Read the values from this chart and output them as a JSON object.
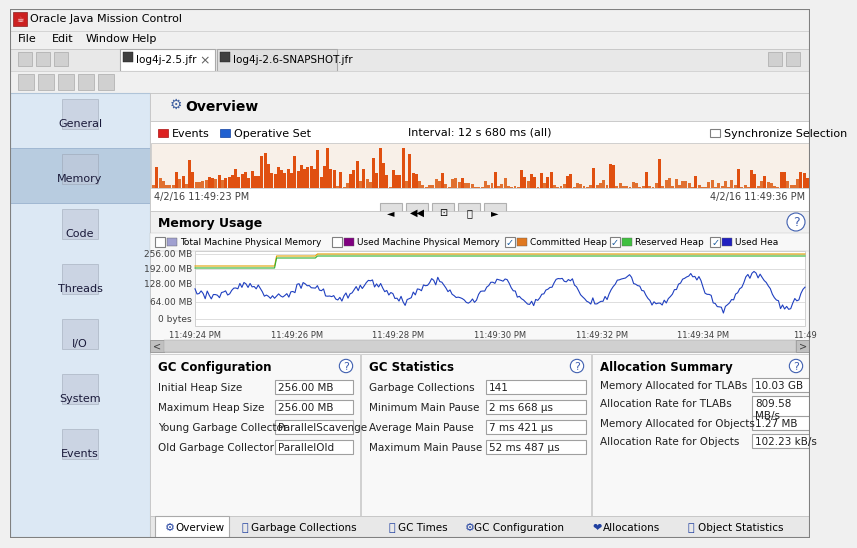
{
  "title_bar": "Oracle Java Mission Control",
  "menu_items": [
    "File",
    "Edit",
    "Window",
    "Help"
  ],
  "tabs": [
    "log4j-2.5.jfr",
    "log4j-2.6-SNAPSHOT.jfr"
  ],
  "active_tab": 0,
  "nav_items": [
    "General",
    "Memory",
    "Code",
    "Threads",
    "I/O",
    "System",
    "Events"
  ],
  "active_nav": "Memory",
  "section_title": "Overview",
  "events_label": "Events",
  "operative_set_label": "Operative Set",
  "interval_label": "Interval: 12 s 680 ms (all)",
  "sync_label": "Synchronize Selection",
  "time_start": "4/2/16 11:49:23 PM",
  "time_end": "4/2/16 11:49:36 PM",
  "memory_usage_title": "Memory Usage",
  "memory_legend": [
    {
      "label": "Total Machine Physical Memory",
      "color": "#a0a0d0",
      "checked": false
    },
    {
      "label": "Used Machine Physical Memory",
      "color": "#800080",
      "checked": false
    },
    {
      "label": "Committed Heap",
      "color": "#e07820",
      "checked": true
    },
    {
      "label": "Reserved Heap",
      "color": "#40c040",
      "checked": true
    },
    {
      "label": "Used Hea",
      "color": "#2020c0",
      "checked": true
    }
  ],
  "mem_y_labels": [
    "256.00 MB",
    "192.00 MB",
    "128.00 MB",
    "64.00 MB",
    "0 bytes"
  ],
  "mem_x_labels": [
    "11:49:24 PM",
    "11:49:26 PM",
    "11:49:28 PM",
    "11:49:30 PM",
    "11:49:32 PM",
    "11:49:34 PM",
    "11:49"
  ],
  "gc_config_title": "GC Configuration",
  "gc_config_items": [
    {
      "label": "Initial Heap Size",
      "value": "256.00 MB"
    },
    {
      "label": "Maximum Heap Size",
      "value": "256.00 MB"
    },
    {
      "label": "Young Garbage Collector",
      "value": "ParallelScavenge"
    },
    {
      "label": "Old Garbage Collector",
      "value": "ParallelOld"
    }
  ],
  "gc_stats_title": "GC Statistics",
  "gc_stats_items": [
    {
      "label": "Garbage Collections",
      "value": "141"
    },
    {
      "label": "Minimum Main Pause",
      "value": "2 ms 668 μs"
    },
    {
      "label": "Average Main Pause",
      "value": "7 ms 421 μs"
    },
    {
      "label": "Maximum Main Pause",
      "value": "52 ms 487 μs"
    }
  ],
  "alloc_summary_title": "Allocation Summary",
  "alloc_items": [
    {
      "label": "Memory Allocated for TLABs",
      "value": "10.03 GB"
    },
    {
      "label": "Allocation Rate for TLABs",
      "value": "809.58\nMB/s"
    },
    {
      "label": "Memory Allocated for Objects",
      "value": "1.27 MB"
    },
    {
      "label": "Allocation Rate for Objects",
      "value": "102.23 kB/s"
    }
  ],
  "bottom_tabs": [
    "Overview",
    "Garbage Collections",
    "GC Times",
    "GC Configuration",
    "Allocations",
    "Object Statistics"
  ],
  "bg_color": "#f0f0f0",
  "panel_bg": "#ffffff",
  "titlebar_bg": "#e8e8e8",
  "border_color": "#c0c0c0",
  "nav_active_bg": "#ccd8e8",
  "nav_bg": "#dce8f4",
  "orange_chart_color": "#e06010",
  "blue_chart_color": "#2040c0",
  "green_chart_color": "#30b030",
  "yellow_chart_color": "#e0a000"
}
